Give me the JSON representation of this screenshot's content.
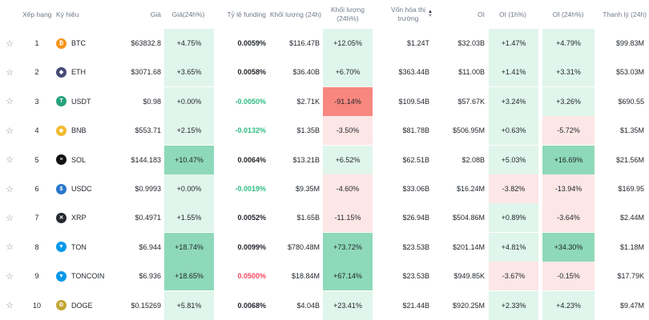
{
  "headers": {
    "rank": "Xếp hạng",
    "symbol": "Ký hiệu",
    "price": "Giá",
    "price_change": "Giá(24h%)",
    "funding": "Tỷ lệ funding",
    "volume": "Khối lượng (24h)",
    "volume_change": "Khối lượng (24h%)",
    "mcap_line1": "Vốn hóa thị",
    "mcap_line2": "trường",
    "oi": "OI",
    "oi_1h": "OI (1h%)",
    "oi_24h": "OI (24h%)",
    "liq": "Thanh lý (24h)"
  },
  "colors": {
    "green_text": "#2ebd85",
    "red_text": "#f6465d",
    "green_bg_strong": "#8ed9b9",
    "green_bg_light": "#e0f5ec",
    "red_bg_strong": "#f8877f",
    "red_bg_light": "#fde6e6",
    "btc": "#f7931a",
    "eth": "#454a75",
    "usdt": "#26a17b",
    "bnb": "#f3ba2f",
    "sol": "#111111",
    "usdc": "#2775ca",
    "xrp": "#23292f",
    "ton": "#0098ea",
    "doge": "#c2a633"
  },
  "rows": [
    {
      "rank": "1",
      "symbol": "BTC",
      "icon": "btc-icon",
      "price": "$63832.8",
      "price_change": "+4.75%",
      "funding": "0.0059%",
      "volume": "$116.47B",
      "volume_change": "+12.05%",
      "mcap": "$1.24T",
      "oi": "$32.03B",
      "oi_1h": "+1.47%",
      "oi_24h": "+4.79%",
      "liq": "$99.83M"
    },
    {
      "rank": "2",
      "symbol": "ETH",
      "icon": "eth-icon",
      "price": "$3071.68",
      "price_change": "+3.65%",
      "funding": "0.0058%",
      "volume": "$36.40B",
      "volume_change": "+6.70%",
      "mcap": "$363.44B",
      "oi": "$11.00B",
      "oi_1h": "+1.41%",
      "oi_24h": "+3.31%",
      "liq": "$53.03M"
    },
    {
      "rank": "3",
      "symbol": "USDT",
      "icon": "usdt-icon",
      "price": "$0.98",
      "price_change": "+0.00%",
      "funding": "-0.0050%",
      "volume": "$2.71K",
      "volume_change": "-91.14%",
      "mcap": "$109.54B",
      "oi": "$57.67K",
      "oi_1h": "+3.24%",
      "oi_24h": "+3.26%",
      "liq": "$690.55"
    },
    {
      "rank": "4",
      "symbol": "BNB",
      "icon": "bnb-icon",
      "price": "$553.71",
      "price_change": "+2.15%",
      "funding": "-0.0132%",
      "volume": "$1.35B",
      "volume_change": "-3.50%",
      "mcap": "$81.78B",
      "oi": "$506.95M",
      "oi_1h": "+0.63%",
      "oi_24h": "-5.72%",
      "liq": "$1.35M"
    },
    {
      "rank": "5",
      "symbol": "SOL",
      "icon": "sol-icon",
      "price": "$144.183",
      "price_change": "+10.47%",
      "funding": "0.0064%",
      "volume": "$13.21B",
      "volume_change": "+6.52%",
      "mcap": "$62.51B",
      "oi": "$2.08B",
      "oi_1h": "+5.03%",
      "oi_24h": "+16.69%",
      "liq": "$21.56M"
    },
    {
      "rank": "6",
      "symbol": "USDC",
      "icon": "usdc-icon",
      "price": "$0.9993",
      "price_change": "+0.00%",
      "funding": "-0.0019%",
      "volume": "$9.35M",
      "volume_change": "-4.60%",
      "mcap": "$33.06B",
      "oi": "$16.24M",
      "oi_1h": "-3.82%",
      "oi_24h": "-13.94%",
      "liq": "$169.95"
    },
    {
      "rank": "7",
      "symbol": "XRP",
      "icon": "xrp-icon",
      "price": "$0.4971",
      "price_change": "+1.55%",
      "funding": "0.0052%",
      "volume": "$1.65B",
      "volume_change": "-11.15%",
      "mcap": "$26.94B",
      "oi": "$504.86M",
      "oi_1h": "+0.89%",
      "oi_24h": "-3.64%",
      "liq": "$2.44M"
    },
    {
      "rank": "8",
      "symbol": "TON",
      "icon": "ton-icon",
      "price": "$6.944",
      "price_change": "+18.74%",
      "funding": "0.0099%",
      "volume": "$780.48M",
      "volume_change": "+73.72%",
      "mcap": "$23.53B",
      "oi": "$201.14M",
      "oi_1h": "+4.81%",
      "oi_24h": "+34.30%",
      "liq": "$1.18M"
    },
    {
      "rank": "9",
      "symbol": "TONCOIN",
      "icon": "toncoin-icon",
      "price": "$6.936",
      "price_change": "+18.65%",
      "funding": "0.0500%",
      "volume": "$18.84M",
      "volume_change": "+67.14%",
      "mcap": "$23.53B",
      "oi": "$949.85K",
      "oi_1h": "-3.67%",
      "oi_24h": "-0.15%",
      "liq": "$17.79K"
    },
    {
      "rank": "10",
      "symbol": "DOGE",
      "icon": "doge-icon",
      "price": "$0.15269",
      "price_change": "+5.81%",
      "funding": "0.0068%",
      "volume": "$4.04B",
      "volume_change": "+23.41%",
      "mcap": "$21.44B",
      "oi": "$920.25M",
      "oi_1h": "+2.33%",
      "oi_24h": "+4.23%",
      "liq": "$9.47M"
    }
  ]
}
